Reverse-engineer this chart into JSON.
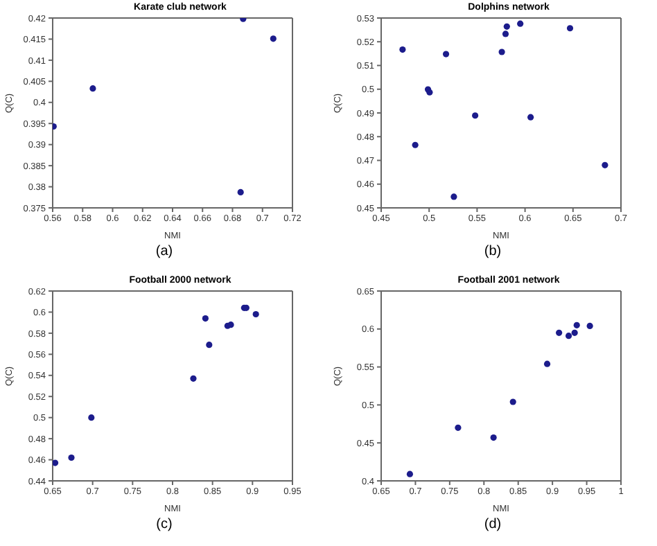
{
  "chart_data": [
    {
      "type": "scatter",
      "title": "Karate club network",
      "xlabel": "NMI",
      "ylabel": "Q(C)",
      "annotations": [
        "(a)"
      ],
      "marker": "circle",
      "xlim": [
        0.56,
        0.72
      ],
      "xticks": [
        0.56,
        0.58,
        0.6,
        0.62,
        0.64,
        0.66,
        0.68,
        0.7,
        0.72
      ],
      "ylim": [
        0.375,
        0.42
      ],
      "yticks": [
        0.375,
        0.38,
        0.385,
        0.39,
        0.395,
        0.4,
        0.405,
        0.41,
        0.415,
        0.42
      ],
      "series": [
        {
          "color": "#1c1c8c",
          "x": [
            0.5606,
            0.5868,
            0.6854,
            0.6871,
            0.7072
          ],
          "values": [
            0.3943,
            0.4033,
            0.3787,
            0.4198,
            0.4151
          ]
        }
      ]
    },
    {
      "type": "scatter",
      "title": "Dolphins network",
      "xlabel": "NMI",
      "ylabel": "Q(C)",
      "annotations": [
        "(b)"
      ],
      "marker": "circle",
      "xlim": [
        0.45,
        0.7
      ],
      "xticks": [
        0.45,
        0.5,
        0.55,
        0.6,
        0.65,
        0.7
      ],
      "ylim": [
        0.45,
        0.53
      ],
      "yticks": [
        0.45,
        0.46,
        0.47,
        0.48,
        0.49,
        0.5,
        0.51,
        0.52,
        0.53
      ],
      "series": [
        {
          "color": "#1c1c8c",
          "x": [
            0.4723,
            0.4855,
            0.4988,
            0.5005,
            0.5176,
            0.5258,
            0.548,
            0.5758,
            0.5797,
            0.581,
            0.595,
            0.6058,
            0.6469,
            0.6833
          ],
          "values": [
            0.5167,
            0.4765,
            0.4999,
            0.4987,
            0.5148,
            0.4547,
            0.4889,
            0.5157,
            0.5233,
            0.5264,
            0.5276,
            0.4882,
            0.5257,
            0.468
          ]
        }
      ]
    },
    {
      "type": "scatter",
      "title": "Football 2000 network",
      "xlabel": "NMI",
      "ylabel": "Q(C)",
      "annotations": [
        "(c)"
      ],
      "marker": "circle",
      "xlim": [
        0.65,
        0.95
      ],
      "xticks": [
        0.65,
        0.7,
        0.75,
        0.8,
        0.85,
        0.9,
        0.95
      ],
      "ylim": [
        0.44,
        0.62
      ],
      "yticks": [
        0.44,
        0.46,
        0.48,
        0.5,
        0.52,
        0.54,
        0.56,
        0.58,
        0.6,
        0.62
      ],
      "series": [
        {
          "color": "#1c1c8c",
          "x": [
            0.6531,
            0.6734,
            0.6984,
            0.826,
            0.8411,
            0.8458,
            0.8688,
            0.8729,
            0.8896,
            0.8922,
            0.9042
          ],
          "values": [
            0.457,
            0.462,
            0.5,
            0.537,
            0.594,
            0.569,
            0.587,
            0.588,
            0.604,
            0.604,
            0.598
          ]
        }
      ]
    },
    {
      "type": "scatter",
      "title": "Football 2001 network",
      "xlabel": "NMI",
      "ylabel": "Q(C)",
      "annotations": [
        "(d)"
      ],
      "marker": "circle",
      "xlim": [
        0.65,
        1
      ],
      "xticks": [
        0.65,
        0.7,
        0.75,
        0.8,
        0.85,
        0.9,
        0.95,
        1
      ],
      "ylim": [
        0.4,
        0.65
      ],
      "yticks": [
        0.4,
        0.45,
        0.5,
        0.55,
        0.6,
        0.65
      ],
      "series": [
        {
          "color": "#1c1c8c",
          "x": [
            0.6919,
            0.7622,
            0.814,
            0.8424,
            0.8923,
            0.9096,
            0.9237,
            0.9324,
            0.9355,
            0.9546
          ],
          "values": [
            0.409,
            0.47,
            0.457,
            0.504,
            0.554,
            0.595,
            0.591,
            0.595,
            0.605,
            0.604
          ]
        }
      ]
    }
  ]
}
